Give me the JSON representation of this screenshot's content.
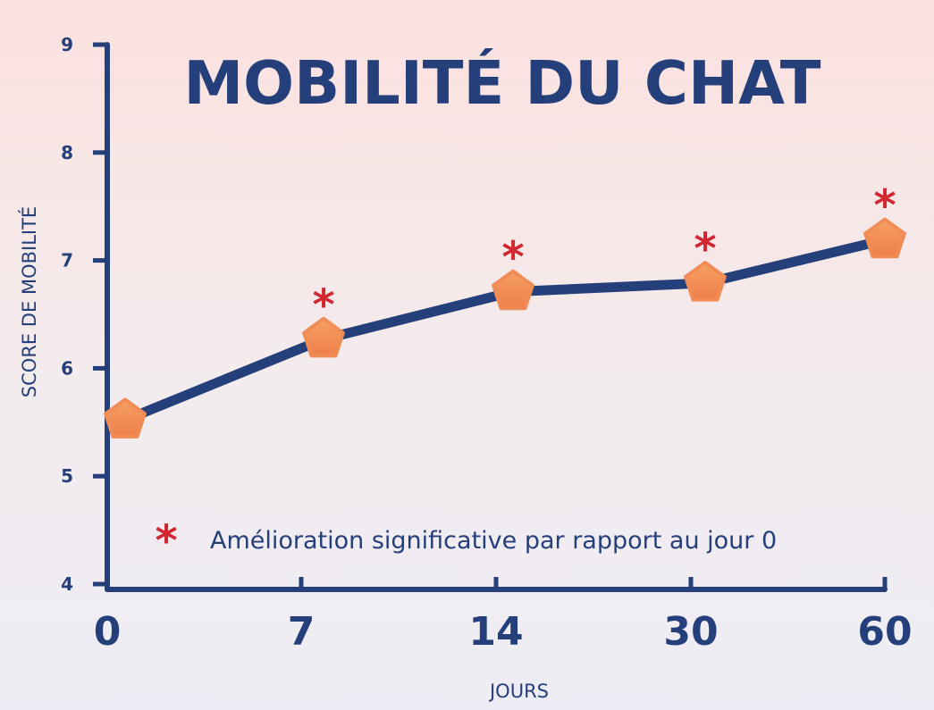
{
  "chart_data": {
    "type": "line",
    "title": "MOBILITÉ DU CHAT",
    "xlabel": "JOURS",
    "ylabel": "SCORE DE MOBILITÉ",
    "categories": [
      "0",
      "7",
      "14",
      "30",
      "60"
    ],
    "ylim": [
      4,
      9
    ],
    "yticks": [
      "4",
      "5",
      "6",
      "7",
      "8",
      "9"
    ],
    "series": [
      {
        "name": "",
        "values": [
          5.52,
          6.27,
          6.71,
          6.79,
          7.19
        ]
      }
    ],
    "significant": [
      false,
      true,
      true,
      true,
      true
    ],
    "significance_marker": "*",
    "legend": {
      "text": "Amélioration significative par rapport au jour 0",
      "marker": "*"
    },
    "grid": false,
    "colors": {
      "line": "#253f7a",
      "marker": "#f08c55",
      "star": "#d22630",
      "text": "#253f7a"
    }
  }
}
